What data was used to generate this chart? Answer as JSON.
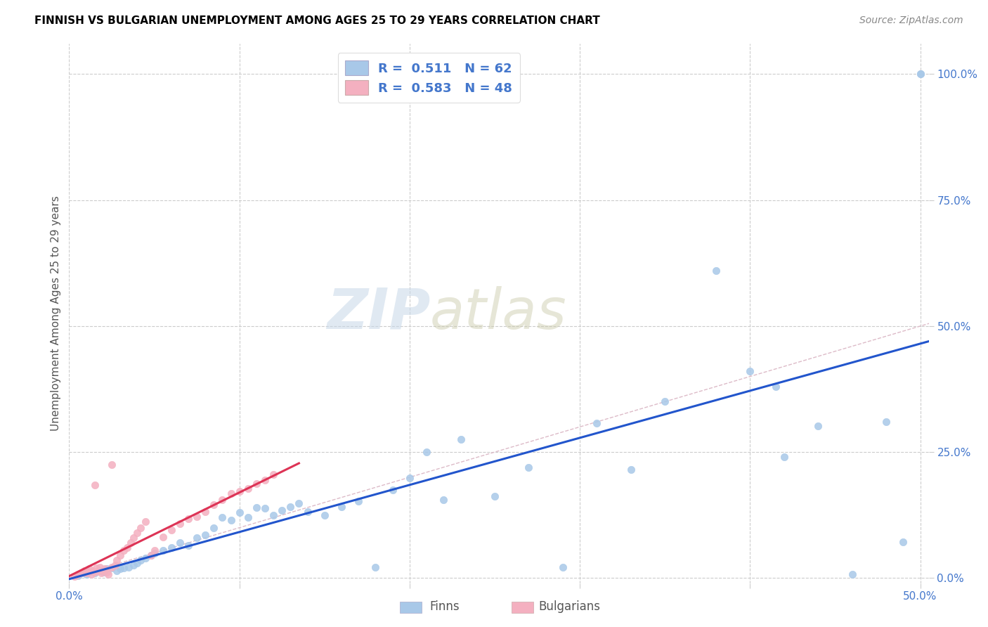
{
  "title": "FINNISH VS BULGARIAN UNEMPLOYMENT AMONG AGES 25 TO 29 YEARS CORRELATION CHART",
  "source": "Source: ZipAtlas.com",
  "ylabel": "Unemployment Among Ages 25 to 29 years",
  "xlim": [
    0.0,
    0.505
  ],
  "ylim": [
    -0.01,
    1.06
  ],
  "x_ticks": [
    0.0,
    0.1,
    0.2,
    0.3,
    0.4,
    0.5
  ],
  "x_tick_labels": [
    "0.0%",
    "",
    "",
    "",
    "",
    "50.0%"
  ],
  "y_tick_labels": [
    "0.0%",
    "25.0%",
    "50.0%",
    "75.0%",
    "100.0%"
  ],
  "y_ticks": [
    0.0,
    0.25,
    0.5,
    0.75,
    1.0
  ],
  "legend_r_finn": "0.511",
  "legend_n_finn": "62",
  "legend_r_bulg": "0.583",
  "legend_n_bulg": "48",
  "watermark_zip": "ZIP",
  "watermark_atlas": "atlas",
  "finn_color": "#a8c8e8",
  "bulg_color": "#f4b0c0",
  "finn_line_color": "#2255cc",
  "bulg_line_color": "#dd3355",
  "diagonal_color": "#ddbbc8",
  "grid_color": "#cccccc",
  "finns_x": [
    0.005,
    0.008,
    0.01,
    0.012,
    0.015,
    0.018,
    0.02,
    0.022,
    0.025,
    0.028,
    0.03,
    0.032,
    0.035,
    0.038,
    0.04,
    0.042,
    0.045,
    0.048,
    0.05,
    0.055,
    0.06,
    0.065,
    0.07,
    0.075,
    0.08,
    0.085,
    0.09,
    0.095,
    0.1,
    0.105,
    0.11,
    0.115,
    0.12,
    0.125,
    0.13,
    0.135,
    0.14,
    0.15,
    0.16,
    0.17,
    0.18,
    0.19,
    0.2,
    0.21,
    0.22,
    0.23,
    0.25,
    0.27,
    0.29,
    0.31,
    0.33,
    0.35,
    0.38,
    0.4,
    0.42,
    0.44,
    0.46,
    0.48,
    0.49,
    0.5,
    0.5,
    0.415
  ],
  "finns_y": [
    0.005,
    0.01,
    0.008,
    0.012,
    0.01,
    0.015,
    0.012,
    0.018,
    0.02,
    0.015,
    0.018,
    0.02,
    0.022,
    0.025,
    0.03,
    0.035,
    0.04,
    0.045,
    0.05,
    0.055,
    0.06,
    0.07,
    0.065,
    0.08,
    0.085,
    0.1,
    0.12,
    0.115,
    0.13,
    0.12,
    0.14,
    0.138,
    0.125,
    0.135,
    0.142,
    0.148,
    0.132,
    0.125,
    0.142,
    0.152,
    0.022,
    0.175,
    0.198,
    0.25,
    0.155,
    0.275,
    0.162,
    0.22,
    0.022,
    0.308,
    0.215,
    0.35,
    0.61,
    0.41,
    0.24,
    0.302,
    0.008,
    0.31,
    0.072,
    1.0,
    1.0,
    0.38
  ],
  "bulgarians_x": [
    0.003,
    0.005,
    0.007,
    0.008,
    0.009,
    0.01,
    0.011,
    0.012,
    0.013,
    0.014,
    0.015,
    0.016,
    0.017,
    0.018,
    0.019,
    0.02,
    0.021,
    0.022,
    0.023,
    0.025,
    0.027,
    0.028,
    0.03,
    0.032,
    0.034,
    0.036,
    0.038,
    0.04,
    0.042,
    0.045,
    0.048,
    0.05,
    0.055,
    0.06,
    0.065,
    0.07,
    0.075,
    0.08,
    0.085,
    0.09,
    0.095,
    0.1,
    0.105,
    0.11,
    0.115,
    0.12,
    0.015,
    0.025
  ],
  "bulgarians_y": [
    0.003,
    0.008,
    0.01,
    0.012,
    0.015,
    0.01,
    0.013,
    0.018,
    0.008,
    0.015,
    0.012,
    0.02,
    0.015,
    0.022,
    0.01,
    0.015,
    0.018,
    0.012,
    0.008,
    0.022,
    0.025,
    0.035,
    0.045,
    0.055,
    0.06,
    0.07,
    0.08,
    0.09,
    0.1,
    0.112,
    0.045,
    0.055,
    0.082,
    0.095,
    0.108,
    0.118,
    0.122,
    0.132,
    0.145,
    0.155,
    0.168,
    0.172,
    0.178,
    0.188,
    0.195,
    0.205,
    0.185,
    0.225
  ],
  "tick_color": "#4477cc",
  "title_fontsize": 11,
  "source_fontsize": 10,
  "legend_fontsize": 13,
  "axis_label_fontsize": 11,
  "tick_fontsize": 11
}
